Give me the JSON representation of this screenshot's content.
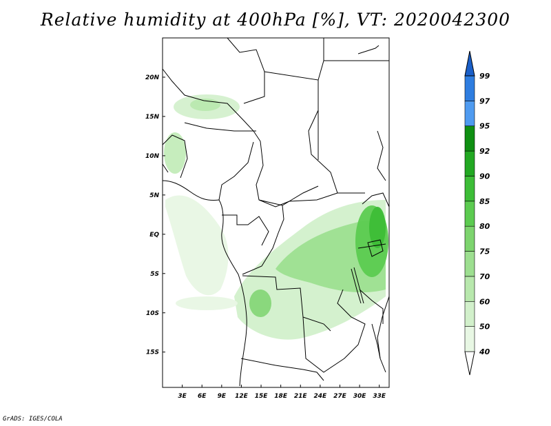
{
  "title": "Relative humidity at 400hPa [%], VT: 2020042300",
  "credit": "GrADS: IGES/COLA",
  "map": {
    "lon_range": [
      0,
      34.5
    ],
    "lat_range": [
      -19.5,
      25
    ],
    "x_ticks": [
      {
        "lon": 3,
        "label": "3E"
      },
      {
        "lon": 6,
        "label": "6E"
      },
      {
        "lon": 9,
        "label": "9E"
      },
      {
        "lon": 12,
        "label": "12E"
      },
      {
        "lon": 15,
        "label": "15E"
      },
      {
        "lon": 18,
        "label": "18E"
      },
      {
        "lon": 21,
        "label": "21E"
      },
      {
        "lon": 24,
        "label": "24E"
      },
      {
        "lon": 27,
        "label": "27E"
      },
      {
        "lon": 30,
        "label": "30E"
      },
      {
        "lon": 33,
        "label": "33E"
      }
    ],
    "y_ticks": [
      {
        "lat": 20,
        "label": "20N"
      },
      {
        "lat": 15,
        "label": "15N"
      },
      {
        "lat": 10,
        "label": "10N"
      },
      {
        "lat": 5,
        "label": "5N"
      },
      {
        "lat": 0,
        "label": "EQ"
      },
      {
        "lat": -5,
        "label": "5S"
      },
      {
        "lat": -10,
        "label": "10S"
      },
      {
        "lat": -15,
        "label": "15S"
      }
    ]
  },
  "colorbar": {
    "levels": [
      {
        "label": "40",
        "color": "#e8f7e4"
      },
      {
        "label": "50",
        "color": "#d2f0cb"
      },
      {
        "label": "60",
        "color": "#b8e8ad"
      },
      {
        "label": "70",
        "color": "#9ddf90"
      },
      {
        "label": "75",
        "color": "#7dd46e"
      },
      {
        "label": "80",
        "color": "#5ccb50"
      },
      {
        "label": "85",
        "color": "#3dbd37"
      },
      {
        "label": "90",
        "color": "#22a822"
      },
      {
        "label": "92",
        "color": "#0f8f12"
      },
      {
        "label": "95",
        "color": "#4f9bf0"
      },
      {
        "label": "97",
        "color": "#2e7de0"
      },
      {
        "label": "99",
        "color": "#1a5fc8"
      }
    ]
  }
}
